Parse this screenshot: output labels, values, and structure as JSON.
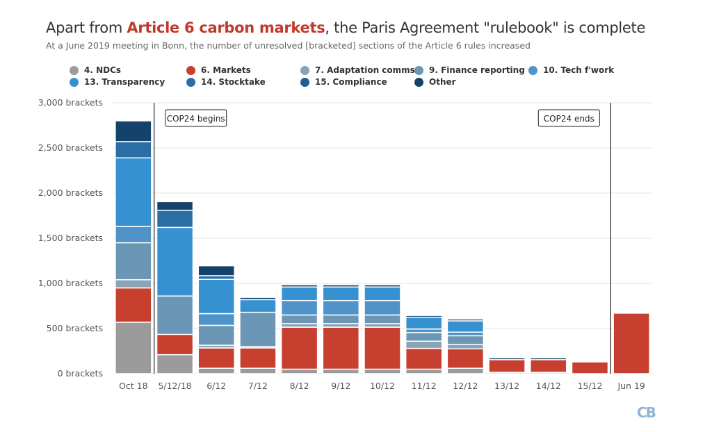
{
  "title": {
    "prefix": "Apart from ",
    "highlight": "Article 6 carbon markets",
    "suffix": ", the Paris Agreement \"rulebook\" is complete"
  },
  "subtitle": "At a June 2019 meeting in Bonn, the number of unresolved [bracketed] sections of the Article 6 rules increased",
  "logo": "CB",
  "colors": {
    "ndcs": "#9b9b9b",
    "markets": "#c63f2f",
    "adaptation": "#8aa3b5",
    "finance": "#6c96b5",
    "tech": "#4f93c8",
    "transparency": "#3691d0",
    "stocktake": "#2a6ea5",
    "compliance": "#1f5d92",
    "other": "#15426b",
    "grid": "#e3e3e3",
    "axis_text": "#555555"
  },
  "chart_data": {
    "type": "bar",
    "stacked": true,
    "title": "",
    "xlabel": "",
    "ylabel": "",
    "ylim": [
      0,
      3000
    ],
    "y_ticks": [
      0,
      500,
      1000,
      1500,
      2000,
      2500,
      3000
    ],
    "y_tick_suffix": " brackets",
    "grid": true,
    "legend_position": "top",
    "categories": [
      "Oct 18",
      "5/12/18",
      "6/12",
      "7/12",
      "8/12",
      "9/12",
      "10/12",
      "11/12",
      "12/12",
      "13/12",
      "14/12",
      "15/12",
      "Jun 19"
    ],
    "series": [
      {
        "name": "4. NDCs",
        "color_key": "ndcs",
        "values": [
          570,
          210,
          60,
          60,
          50,
          50,
          50,
          50,
          60,
          15,
          15,
          0,
          0
        ]
      },
      {
        "name": "6. Markets",
        "color_key": "markets",
        "values": [
          380,
          225,
          225,
          225,
          465,
          465,
          465,
          230,
          215,
          140,
          140,
          130,
          670
        ]
      },
      {
        "name": "7. Adaptation comms",
        "color_key": "adaptation",
        "values": [
          90,
          0,
          30,
          15,
          40,
          40,
          40,
          80,
          50,
          0,
          0,
          0,
          0
        ]
      },
      {
        "name": "9. Finance reporting",
        "color_key": "finance",
        "values": [
          410,
          425,
          220,
          380,
          95,
          95,
          95,
          95,
          95,
          0,
          0,
          0,
          0
        ]
      },
      {
        "name": "10. Tech f'work",
        "color_key": "tech",
        "values": [
          180,
          0,
          130,
          0,
          160,
          160,
          160,
          40,
          40,
          0,
          0,
          0,
          0
        ]
      },
      {
        "name": "13. Transparency",
        "color_key": "transparency",
        "values": [
          760,
          760,
          380,
          140,
          150,
          150,
          150,
          130,
          125,
          0,
          0,
          0,
          0
        ]
      },
      {
        "name": "14. Stocktake",
        "color_key": "stocktake",
        "values": [
          180,
          190,
          40,
          0,
          0,
          0,
          0,
          0,
          0,
          0,
          0,
          0,
          0
        ]
      },
      {
        "name": "15. Compliance",
        "color_key": "compliance",
        "values": [
          0,
          0,
          0,
          0,
          0,
          0,
          0,
          0,
          0,
          0,
          0,
          0,
          0
        ]
      },
      {
        "name": "Other",
        "color_key": "other",
        "values": [
          230,
          95,
          110,
          25,
          25,
          25,
          25,
          20,
          20,
          20,
          20,
          0,
          0
        ]
      }
    ],
    "annotations": [
      {
        "label": "COP24 begins",
        "after_category": "Oct 18",
        "box_side": "right"
      },
      {
        "label": "COP24 ends",
        "after_category": "15/12",
        "box_side": "left"
      }
    ]
  }
}
